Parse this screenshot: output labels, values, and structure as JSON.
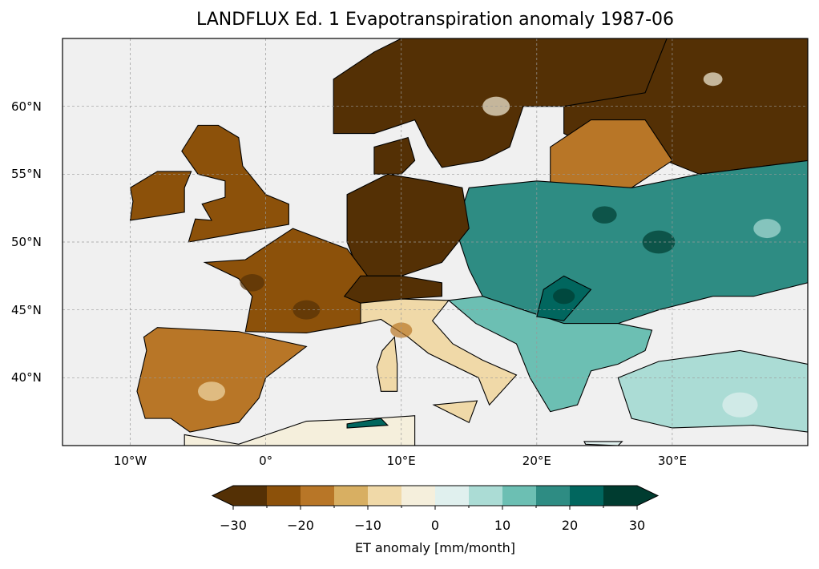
{
  "title": "LANDFLUX Ed. 1 Evapotranspiration anomaly 1987-06",
  "map": {
    "extent_lon": [
      -15,
      40
    ],
    "extent_lat": [
      35,
      65
    ],
    "lon_ticks": [
      {
        "value": -10,
        "label": "10°W"
      },
      {
        "value": 0,
        "label": "0°"
      },
      {
        "value": 10,
        "label": "10°E"
      },
      {
        "value": 20,
        "label": "20°E"
      },
      {
        "value": 30,
        "label": "30°E"
      }
    ],
    "lat_ticks": [
      {
        "value": 60,
        "label": "60°N"
      },
      {
        "value": 55,
        "label": "55°N"
      },
      {
        "value": 50,
        "label": "50°N"
      },
      {
        "value": 45,
        "label": "45°N"
      },
      {
        "value": 40,
        "label": "40°N"
      }
    ],
    "ocean_color": "#f0f0f0"
  },
  "colorbar": {
    "label": "ET anomaly [mm/month]",
    "range": [
      -30,
      30
    ],
    "bounds": [
      -30,
      -25,
      -20,
      -15,
      -10,
      -5,
      0,
      5,
      10,
      15,
      20,
      25,
      30
    ],
    "colors": [
      "#543005",
      "#8c510a",
      "#b87627",
      "#d8af62",
      "#f0d9a8",
      "#f5efdc",
      "#e0f0ee",
      "#abdcd5",
      "#6cbfb3",
      "#2e8c83",
      "#01665e",
      "#003c30"
    ],
    "under_color": "#543005",
    "over_color": "#003c30",
    "ticks": [
      {
        "value": -30,
        "label": "−30"
      },
      {
        "value": -20,
        "label": "−20"
      },
      {
        "value": -10,
        "label": "−10"
      },
      {
        "value": 0,
        "label": "0"
      },
      {
        "value": 10,
        "label": "10"
      },
      {
        "value": 20,
        "label": "20"
      },
      {
        "value": 30,
        "label": "30"
      }
    ]
  }
}
